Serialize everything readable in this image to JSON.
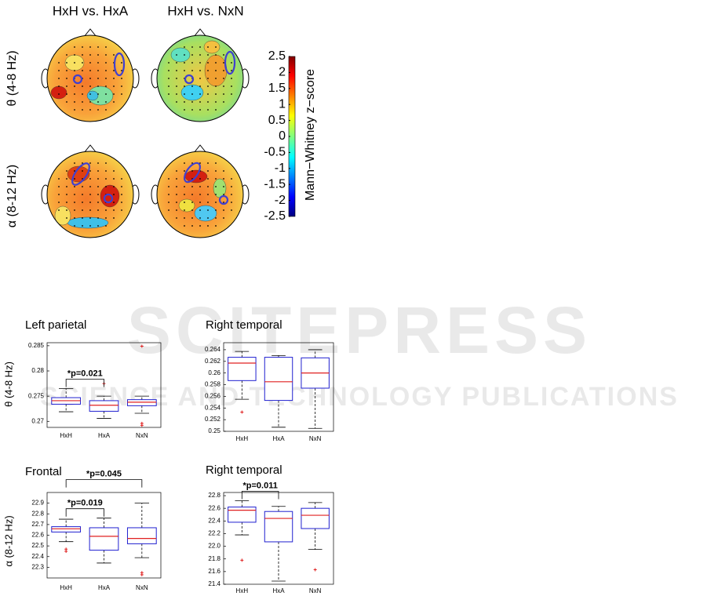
{
  "topomap": {
    "columns": [
      "HxH vs. HxA",
      "HxH vs. NxN"
    ],
    "rows": [
      "θ (4-8 Hz)",
      "α (8-12 Hz)"
    ],
    "colorbar": {
      "label": "Mann−Whitney  z−score",
      "lim": [
        -2.5,
        2.5
      ],
      "ticks": [
        2.5,
        2,
        1.5,
        1,
        0.5,
        0,
        -0.5,
        -1,
        -1.5,
        -2,
        -2.5
      ]
    }
  },
  "watermark": {
    "title": "SCITEPRESS",
    "subtitle": "SCIENCE AND TECHNOLOGY PUBLICATIONS"
  },
  "chart_data": [
    {
      "type": "box",
      "title": "Left parietal",
      "ylabel": "θ (4-8 Hz)",
      "categories": [
        "HxH",
        "HxA",
        "NxN"
      ],
      "boxes": [
        {
          "min": 0.2719,
          "q1": 0.2734,
          "median": 0.2741,
          "q3": 0.2747,
          "max": 0.2765,
          "outliers": []
        },
        {
          "min": 0.2706,
          "q1": 0.272,
          "median": 0.2732,
          "q3": 0.2741,
          "max": 0.275,
          "outliers": [
            0.2775
          ]
        },
        {
          "min": 0.2716,
          "q1": 0.2731,
          "median": 0.2738,
          "q3": 0.2743,
          "max": 0.275,
          "outliers": [
            0.2849,
            0.2696,
            0.2692
          ]
        }
      ],
      "ylim": [
        0.2688,
        0.2856
      ],
      "yticks": [
        0.27,
        0.275,
        0.28,
        0.285
      ],
      "annotations": [
        {
          "text": "*p=0.021",
          "between": [
            0,
            1
          ]
        }
      ]
    },
    {
      "type": "box",
      "title": "Right temporal",
      "categories": [
        "HxH",
        "HxA",
        "NxN"
      ],
      "boxes": [
        {
          "min": 0.2555,
          "q1": 0.2587,
          "median": 0.2617,
          "q3": 0.2627,
          "max": 0.2637,
          "outliers": [
            0.2533
          ]
        },
        {
          "min": 0.2507,
          "q1": 0.2553,
          "median": 0.2585,
          "q3": 0.2627,
          "max": 0.263,
          "outliers": []
        },
        {
          "min": 0.2505,
          "q1": 0.2574,
          "median": 0.26,
          "q3": 0.2626,
          "max": 0.264,
          "outliers": []
        }
      ],
      "ylim": [
        0.25,
        0.2652
      ],
      "yticks": [
        0.25,
        0.252,
        0.254,
        0.256,
        0.258,
        0.26,
        0.262,
        0.264
      ],
      "annotations": []
    },
    {
      "type": "box",
      "title": "Frontal",
      "ylabel": "α (8-12 Hz)",
      "categories": [
        "HxH",
        "HxA",
        "NxN"
      ],
      "boxes": [
        {
          "min": 22.54,
          "q1": 22.63,
          "median": 22.66,
          "q3": 22.68,
          "max": 22.75,
          "outliers": [
            22.47,
            22.45
          ]
        },
        {
          "min": 22.34,
          "q1": 22.46,
          "median": 22.59,
          "q3": 22.67,
          "max": 22.76,
          "outliers": []
        },
        {
          "min": 22.39,
          "q1": 22.52,
          "median": 22.57,
          "q3": 22.67,
          "max": 22.9,
          "outliers": [
            22.25,
            22.23
          ]
        }
      ],
      "ylim": [
        22.2,
        23.0
      ],
      "yticks": [
        22.3,
        22.4,
        22.5,
        22.6,
        22.7,
        22.8,
        22.9
      ],
      "annotations": [
        {
          "text": "*p=0.019",
          "between": [
            0,
            1
          ]
        },
        {
          "text": "*p=0.045",
          "between": [
            0,
            2
          ]
        }
      ]
    },
    {
      "type": "box",
      "title": "Right temporal",
      "categories": [
        "HxH",
        "HxA",
        "NxN"
      ],
      "boxes": [
        {
          "min": 22.18,
          "q1": 22.38,
          "median": 22.57,
          "q3": 22.62,
          "max": 22.72,
          "outliers": [
            21.78
          ]
        },
        {
          "min": 21.45,
          "q1": 22.07,
          "median": 22.44,
          "q3": 22.55,
          "max": 22.63,
          "outliers": []
        },
        {
          "min": 21.95,
          "q1": 22.28,
          "median": 22.49,
          "q3": 22.6,
          "max": 22.69,
          "outliers": [
            21.63
          ]
        }
      ],
      "ylim": [
        21.4,
        22.85
      ],
      "yticks": [
        21.4,
        21.6,
        21.8,
        {
          "value": 22,
          "label": "22.0"
        },
        22.2,
        22.4,
        22.6,
        22.8
      ],
      "annotations": [
        {
          "text": "*p=0.011",
          "between": [
            0,
            1
          ]
        }
      ]
    }
  ]
}
